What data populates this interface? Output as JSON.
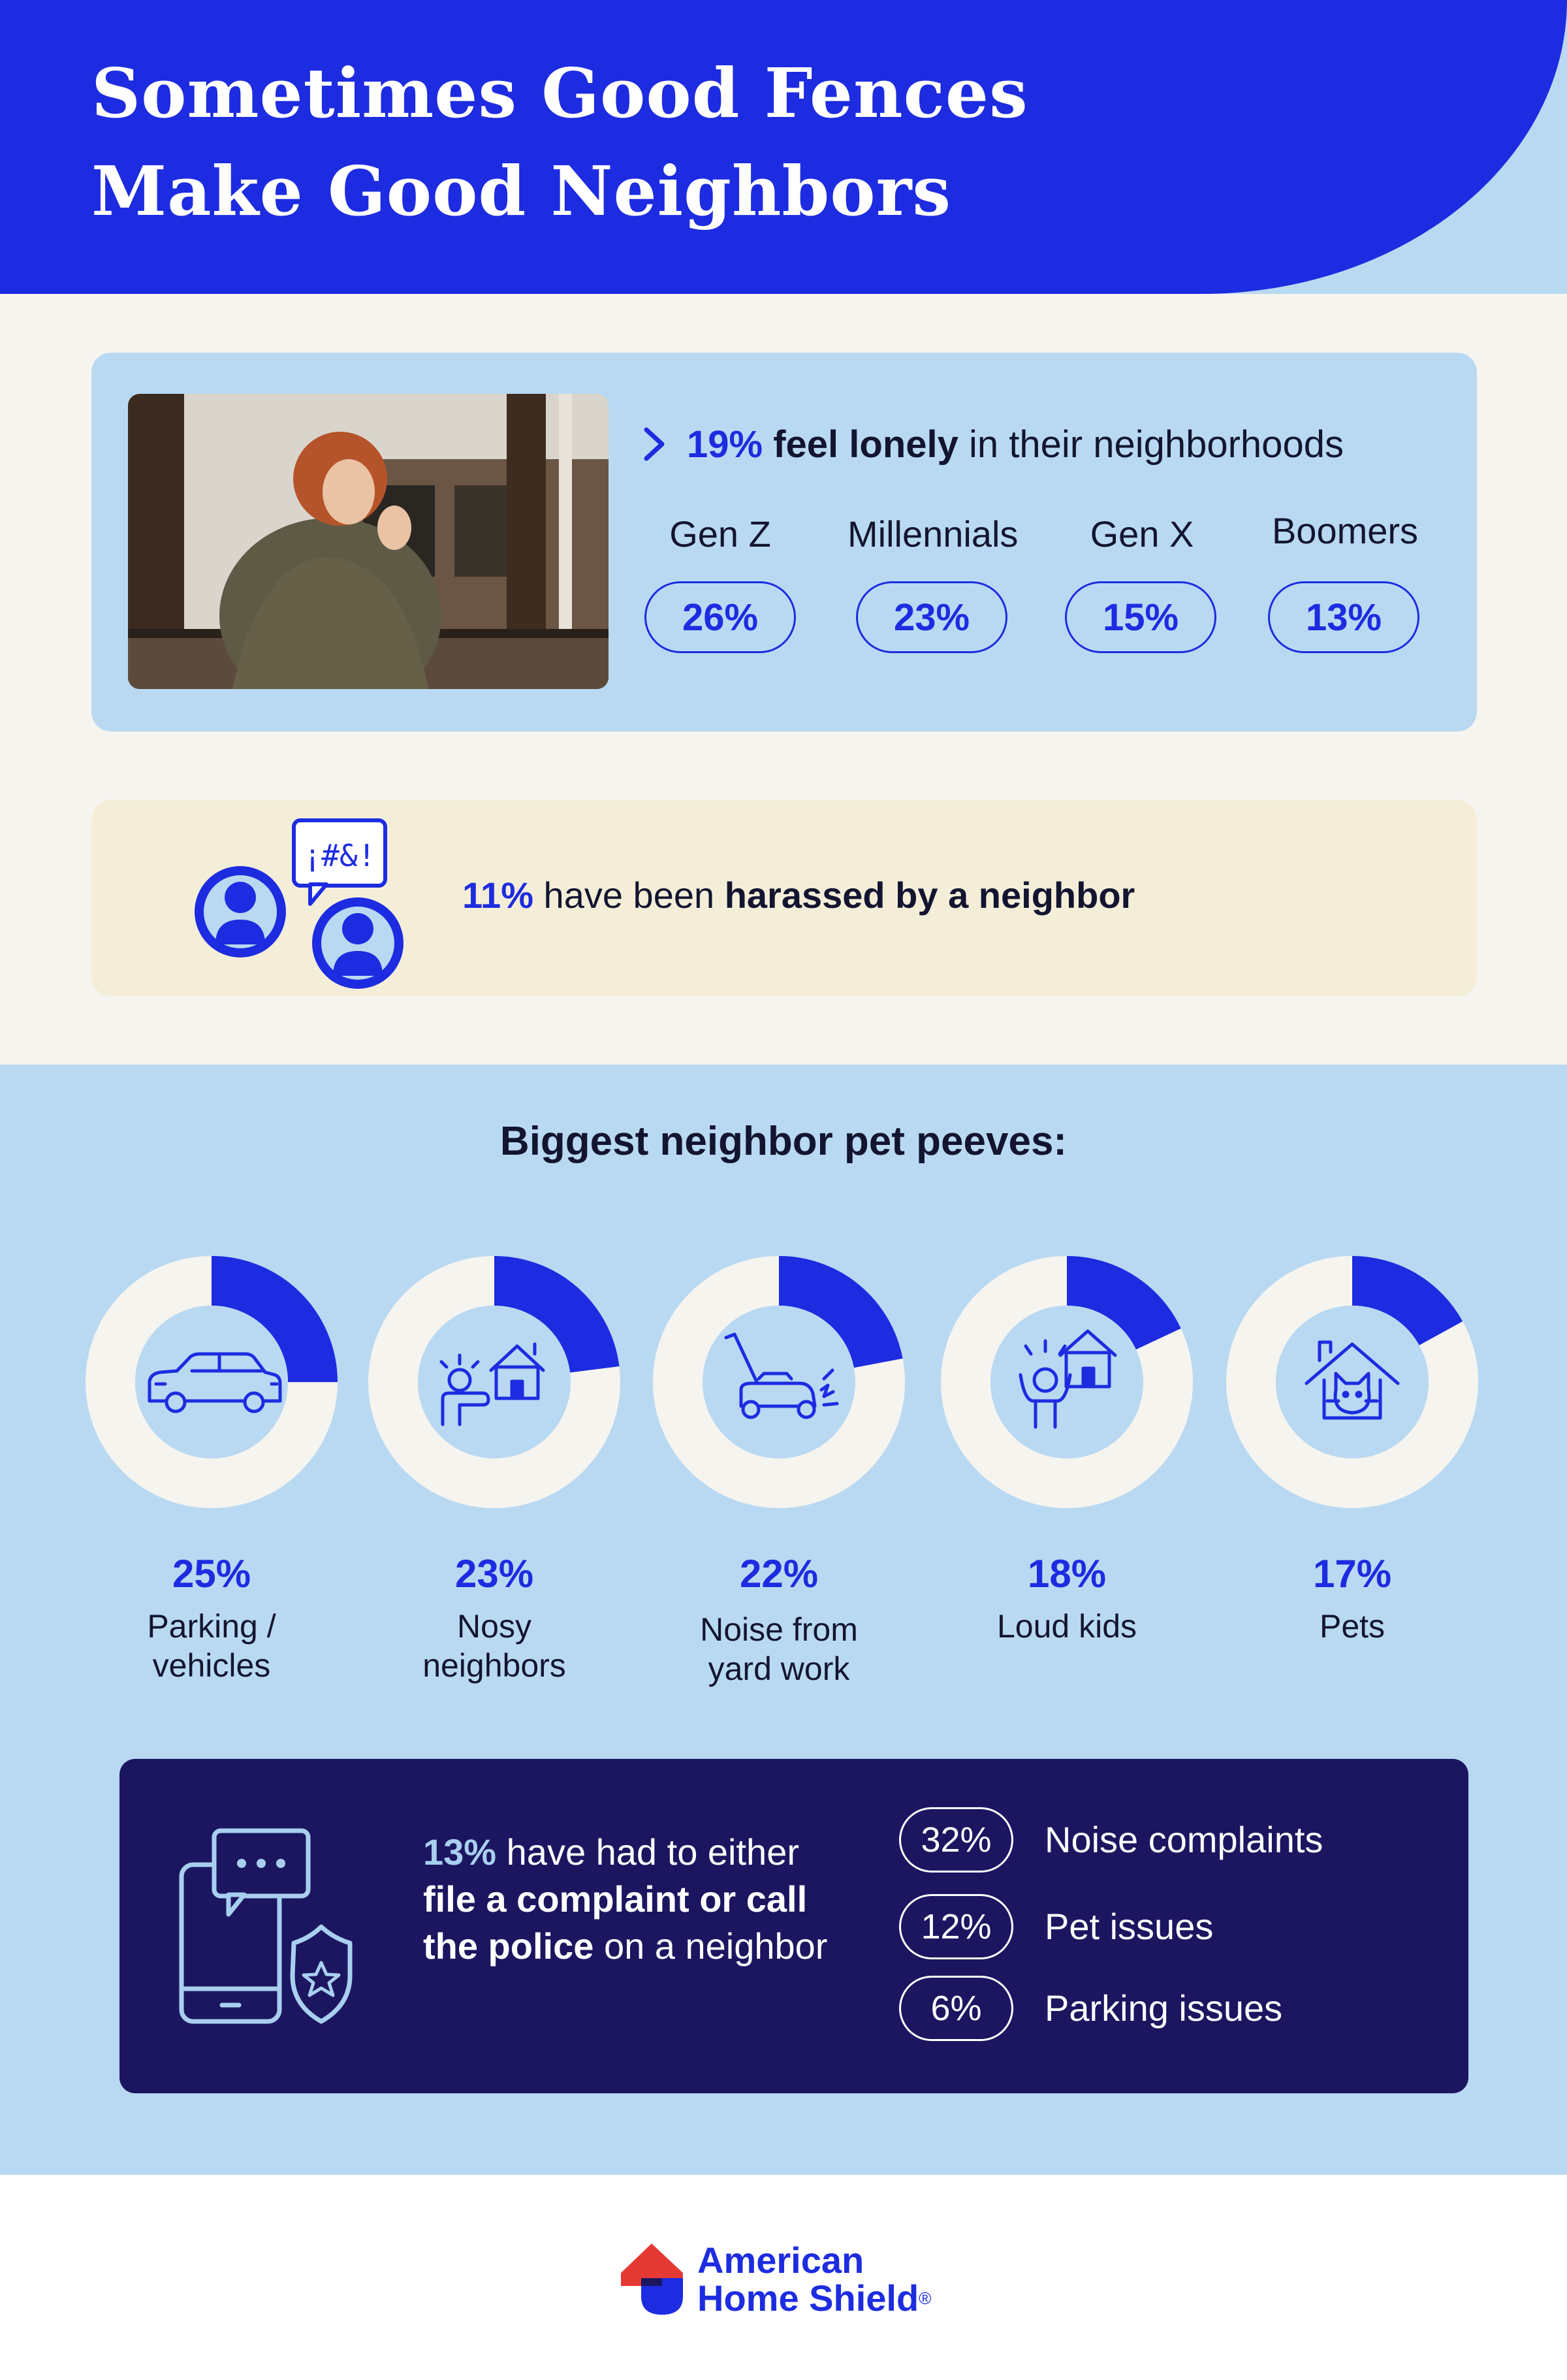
{
  "title": {
    "line1": "Sometimes Good Fences",
    "line2": "Make Good Neighbors"
  },
  "loneliness": {
    "headline_pct": "19%",
    "headline_bold": "feel lonely",
    "headline_rest": " in their neighborhoods",
    "generations": [
      {
        "label": "Gen Z",
        "value": "26%"
      },
      {
        "label": "Millennials",
        "value": "23%"
      },
      {
        "label": "Gen X",
        "value": "15%"
      },
      {
        "label": "Boomers",
        "value": "13%"
      }
    ]
  },
  "harassment": {
    "pct": "11%",
    "text": " have been ",
    "bold": "harassed by a neighbor",
    "bubble_text": "¡#&!"
  },
  "peeves": {
    "heading": "Biggest neighbor pet peeves:",
    "items": [
      {
        "pct": "25%",
        "value": 25,
        "label1": "Parking /",
        "label2": "vehicles",
        "icon": "car-icon"
      },
      {
        "pct": "23%",
        "value": 23,
        "label1": "Nosy",
        "label2": "neighbors",
        "icon": "nosy-neighbor-icon"
      },
      {
        "pct": "22%",
        "value": 22,
        "label1": "Noise from",
        "label2": "yard work",
        "icon": "lawn-mower-icon"
      },
      {
        "pct": "18%",
        "value": 18,
        "label1": "Loud kids",
        "label2": "",
        "icon": "loud-kid-icon"
      },
      {
        "pct": "17%",
        "value": 17,
        "label1": "Pets",
        "label2": "",
        "icon": "cat-house-icon"
      }
    ]
  },
  "complaints": {
    "pct": "13%",
    "t1": " have had to either ",
    "b1": "file a complaint or call the police",
    "t2": " on a neighbor",
    "items": [
      {
        "pct": "32%",
        "label": "Noise complaints"
      },
      {
        "pct": "12%",
        "label": "Pet issues"
      },
      {
        "pct": "6%",
        "label": "Parking issues"
      }
    ]
  },
  "brand": {
    "line1": "American",
    "line2": "Home Shield",
    "mark": "®"
  },
  "colors": {
    "brand_blue": "#1d2ce0",
    "light_blue": "#b9d9f2",
    "cream": "#f4eed9",
    "off_white": "#f6f4ef",
    "navy": "#1c1660",
    "logo_red": "#e53935"
  }
}
